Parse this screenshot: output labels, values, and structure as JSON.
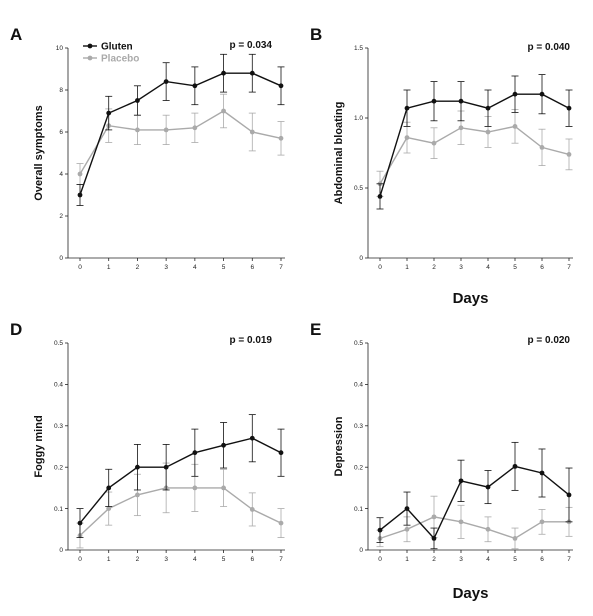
{
  "chart_data": [
    {
      "type": "line",
      "panel": "A",
      "title": "",
      "p_value": "p = 0.034",
      "xlabel": "",
      "ylabel": "Overall symptoms",
      "x": [
        0,
        1,
        2,
        3,
        4,
        5,
        6,
        7
      ],
      "xlim": [
        0,
        7
      ],
      "ylim": [
        0,
        10
      ],
      "yticks": [
        0,
        2,
        4,
        6,
        8,
        10
      ],
      "grid": false,
      "legend": "top-left",
      "series": [
        {
          "name": "Gluten",
          "color": "#111111",
          "values": [
            3.0,
            6.9,
            7.5,
            8.4,
            8.2,
            8.8,
            8.8,
            8.2
          ],
          "errors": [
            0.5,
            0.8,
            0.7,
            0.9,
            0.9,
            0.9,
            0.9,
            0.9
          ]
        },
        {
          "name": "Placebo",
          "color": "#aaaaaa",
          "values": [
            4.0,
            6.3,
            6.1,
            6.1,
            6.2,
            7.0,
            6.0,
            5.7
          ],
          "errors": [
            0.5,
            0.8,
            0.7,
            0.7,
            0.7,
            0.8,
            0.9,
            0.8
          ]
        }
      ]
    },
    {
      "type": "line",
      "panel": "B",
      "title": "",
      "p_value": "p = 0.040",
      "xlabel": "Days",
      "ylabel": "Abdominal bloating",
      "x": [
        0,
        1,
        2,
        3,
        4,
        5,
        6,
        7
      ],
      "xlim": [
        0,
        7
      ],
      "ylim": [
        0,
        1.5
      ],
      "yticks": [
        0,
        0.5,
        1.0,
        1.5
      ],
      "grid": false,
      "series": [
        {
          "name": "Gluten",
          "color": "#111111",
          "values": [
            0.44,
            1.07,
            1.12,
            1.12,
            1.07,
            1.17,
            1.17,
            1.07
          ],
          "errors": [
            0.09,
            0.13,
            0.14,
            0.14,
            0.13,
            0.13,
            0.14,
            0.13
          ]
        },
        {
          "name": "Placebo",
          "color": "#aaaaaa",
          "values": [
            0.53,
            0.86,
            0.82,
            0.93,
            0.9,
            0.94,
            0.79,
            0.74
          ],
          "errors": [
            0.09,
            0.11,
            0.11,
            0.12,
            0.11,
            0.12,
            0.13,
            0.11
          ]
        }
      ]
    },
    {
      "type": "line",
      "panel": "D",
      "title": "",
      "p_value": "p = 0.019",
      "xlabel": "",
      "ylabel": "Foggy mind",
      "x": [
        0,
        1,
        2,
        3,
        4,
        5,
        6,
        7
      ],
      "xlim": [
        0,
        7
      ],
      "ylim": [
        0,
        0.5
      ],
      "yticks": [
        0,
        0.1,
        0.2,
        0.3,
        0.4,
        0.5
      ],
      "grid": false,
      "series": [
        {
          "name": "Gluten",
          "color": "#111111",
          "values": [
            0.065,
            0.15,
            0.2,
            0.2,
            0.235,
            0.253,
            0.27,
            0.235
          ],
          "errors": [
            0.035,
            0.045,
            0.055,
            0.055,
            0.057,
            0.055,
            0.057,
            0.057
          ]
        },
        {
          "name": "Placebo",
          "color": "#aaaaaa",
          "values": [
            0.035,
            0.1,
            0.133,
            0.15,
            0.15,
            0.15,
            0.098,
            0.065
          ],
          "errors": [
            0.03,
            0.04,
            0.05,
            0.06,
            0.057,
            0.045,
            0.04,
            0.035
          ]
        }
      ]
    },
    {
      "type": "line",
      "panel": "E",
      "title": "",
      "p_value": "p = 0.020",
      "xlabel": "Days",
      "ylabel": "Depression",
      "x": [
        0,
        1,
        2,
        3,
        4,
        5,
        6,
        7
      ],
      "xlim": [
        0,
        7
      ],
      "ylim": [
        0,
        0.5
      ],
      "yticks": [
        0,
        0.1,
        0.2,
        0.3,
        0.4,
        0.5
      ],
      "grid": false,
      "series": [
        {
          "name": "Gluten",
          "color": "#111111",
          "values": [
            0.048,
            0.1,
            0.028,
            0.167,
            0.152,
            0.202,
            0.186,
            0.133
          ],
          "errors": [
            0.03,
            0.04,
            0.025,
            0.05,
            0.04,
            0.058,
            0.058,
            0.065
          ]
        },
        {
          "name": "Placebo",
          "color": "#aaaaaa",
          "values": [
            0.028,
            0.05,
            0.08,
            0.068,
            0.05,
            0.028,
            0.068,
            0.068
          ],
          "errors": [
            0.02,
            0.03,
            0.05,
            0.04,
            0.03,
            0.025,
            0.03,
            0.035
          ]
        }
      ]
    }
  ]
}
